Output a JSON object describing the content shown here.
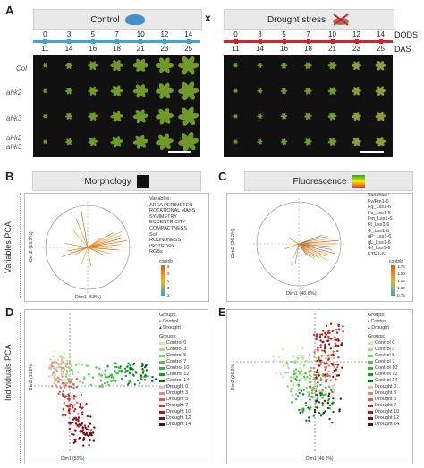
{
  "panels": {
    "A": {
      "letter": "A",
      "control_label": "Control",
      "drought_label": "Drought stress",
      "x_sign": "x",
      "dods_label": "DODS",
      "das_label": "DAS",
      "dods": [
        "0",
        "3",
        "5",
        "7",
        "10",
        "12",
        "14"
      ],
      "das": [
        "11",
        "14",
        "16",
        "18",
        "21",
        "23",
        "25"
      ],
      "rows": [
        "Col",
        "ahk2",
        "ahk3",
        "ahk2\nahk3"
      ],
      "colors": {
        "timeline_control": "#3aa6dc",
        "timeline_drought": "#e02020"
      }
    },
    "B": {
      "letter": "B",
      "title": "Morphology",
      "variables_title": "Variables:",
      "variables": [
        "AREA PERIMETER",
        "ROTATIONAL MASS",
        "SYMMETRY",
        "ECCENTRICITY",
        "COMPACTNESS",
        "Sol.",
        "ROUNDNESS",
        "ISOTROPY",
        "RGBs"
      ],
      "x_axis": "Dim1 (53%)",
      "y_axis": "Dim2 (15.2%)",
      "contrib_label": "contrib",
      "contrib_ticks": [
        "6",
        "5",
        "4",
        "3",
        "2"
      ]
    },
    "C": {
      "letter": "C",
      "title": "Fluorescence",
      "variables_title": "Variables:",
      "variables": [
        "Fv/Fm1-6",
        "Fq_Lss1-6",
        "Fo_Lss1-6",
        "Fm_Lss1-6",
        "Ft_Lss1-6",
        "Φ_Lss1-6",
        "qP_Lss1-6",
        "qL_Lss1-6",
        "Φf_Lss1-6",
        "ETR1-6"
      ],
      "x_axis": "Dim1 (46.8%)",
      "y_axis": "Dim2 (26.2%)",
      "contrib_label": "contrib",
      "contrib_ticks": [
        "1.75",
        "1.50",
        "1.25",
        "1.00",
        "0.75"
      ]
    },
    "D": {
      "letter": "D",
      "x_axis": "Dim1 (53%)",
      "y_axis": "Dim2 (15.2%)"
    },
    "E": {
      "letter": "E",
      "x_axis": "Dim1 (46.8%)",
      "y_axis": "Dim2 (26.2%)"
    }
  },
  "side_labels": {
    "variables": "Variables PCA",
    "individuals": "Individuals PCA"
  },
  "groups_legend": {
    "title": "Groups:",
    "shape_items": [
      "Control",
      "Drought"
    ],
    "items": [
      {
        "label": "Control 0",
        "color": "#c9e8b8"
      },
      {
        "label": "Control 3",
        "color": "#a6e08e"
      },
      {
        "label": "Control 5",
        "color": "#7fd46a"
      },
      {
        "label": "Control 7",
        "color": "#4ec94a"
      },
      {
        "label": "Control 10",
        "color": "#2db83a"
      },
      {
        "label": "Control 12",
        "color": "#169a2a"
      },
      {
        "label": "Control 14",
        "color": "#0a6b1c"
      },
      {
        "label": "Drought 0",
        "color": "#f2b7b0"
      },
      {
        "label": "Drought 3",
        "color": "#e88a80"
      },
      {
        "label": "Drought 5",
        "color": "#dd5a50"
      },
      {
        "label": "Drought 7",
        "color": "#cc3028"
      },
      {
        "label": "Drought 10",
        "color": "#b01818"
      },
      {
        "label": "Drought 12",
        "color": "#8a0f12"
      },
      {
        "label": "Drought 14",
        "color": "#5e0a0c"
      }
    ]
  }
}
